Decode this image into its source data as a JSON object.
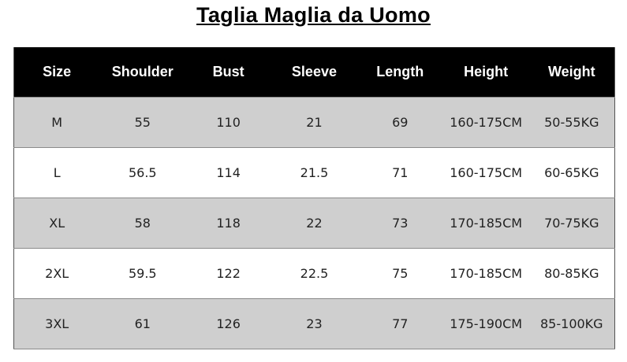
{
  "title": "Taglia Maglia da Uomo",
  "table": {
    "headers": [
      "Size",
      "Shoulder",
      "Bust",
      "Sleeve",
      "Length",
      "Height",
      "Weight"
    ],
    "rows": [
      [
        "M",
        "55",
        "110",
        "21",
        "69",
        "160-175CM",
        "50-55KG"
      ],
      [
        "L",
        "56.5",
        "114",
        "21.5",
        "71",
        "160-175CM",
        "60-65KG"
      ],
      [
        "XL",
        "58",
        "118",
        "22",
        "73",
        "170-185CM",
        "70-75KG"
      ],
      [
        "2XL",
        "59.5",
        "122",
        "22.5",
        "75",
        "170-185CM",
        "80-85KG"
      ],
      [
        "3XL",
        "61",
        "126",
        "23",
        "77",
        "175-190CM",
        "85-100KG"
      ]
    ]
  },
  "colors": {
    "header_bg": "#000000",
    "row_gray": "#cfcfcf",
    "row_white": "#ffffff"
  }
}
